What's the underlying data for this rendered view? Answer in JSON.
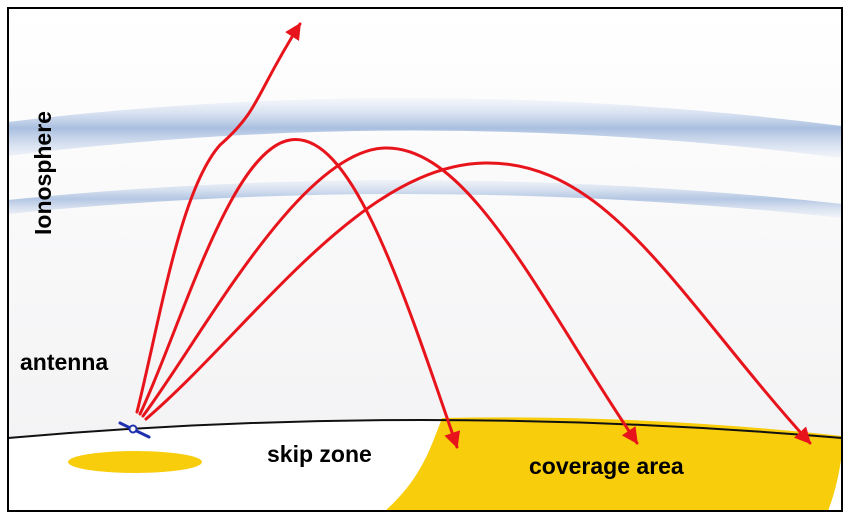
{
  "labels": {
    "ionosphere": "Ionosphere",
    "antenna": "antenna",
    "skip_zone": "skip zone",
    "coverage_area": "coverage area"
  },
  "colors": {
    "background": "#ffffff",
    "sky": "#f3f3f5",
    "border": "#000000",
    "ionosphere_band": "#a9bfe0",
    "signal_ray": "#e8141c",
    "coverage": "#f7cd0c",
    "antenna": "#1f2fb0",
    "ground_line": "#111111"
  },
  "icons": {
    "antenna": "dipole-antenna-icon",
    "ray_arrowhead": "arrow-head-icon"
  }
}
